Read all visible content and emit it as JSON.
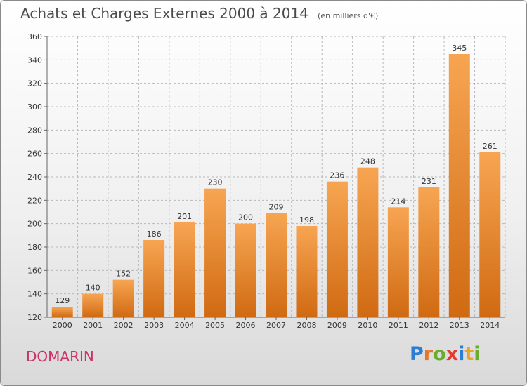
{
  "header": {
    "title": "Achats et Charges Externes 2000 à 2014",
    "subtitle": "(en milliers d'€)"
  },
  "commune": "DOMARIN",
  "logo": {
    "text": "Proxiti",
    "letters": [
      {
        "ch": "P",
        "color": "#2a7fd4"
      },
      {
        "ch": "r",
        "color": "#e8732a"
      },
      {
        "ch": "o",
        "color": "#6aad2e"
      },
      {
        "ch": "x",
        "color": "#e53a2f"
      },
      {
        "ch": "i",
        "color": "#2a7fd4"
      },
      {
        "ch": "t",
        "color": "#e8a52a"
      },
      {
        "ch": "i",
        "color": "#6aad2e"
      }
    ]
  },
  "colors": {
    "bar_light": "#f7a552",
    "bar_dark": "#d06a12",
    "grid": "#b8b8b8",
    "axis": "#666666",
    "text": "#333333"
  },
  "chart_data": {
    "type": "bar",
    "title": "Achats et Charges Externes 2000 à 2014",
    "subtitle": "(en milliers d'€)",
    "categories": [
      "2000",
      "2001",
      "2002",
      "2003",
      "2004",
      "2005",
      "2006",
      "2007",
      "2008",
      "2009",
      "2010",
      "2011",
      "2012",
      "2013",
      "2014"
    ],
    "values": [
      129,
      140,
      152,
      186,
      201,
      230,
      200,
      209,
      198,
      236,
      248,
      214,
      231,
      345,
      261
    ],
    "ylim": [
      120,
      360
    ],
    "yticks": [
      120,
      140,
      160,
      180,
      200,
      220,
      240,
      260,
      280,
      300,
      320,
      340,
      360
    ],
    "grid": true,
    "data_labels": true
  }
}
